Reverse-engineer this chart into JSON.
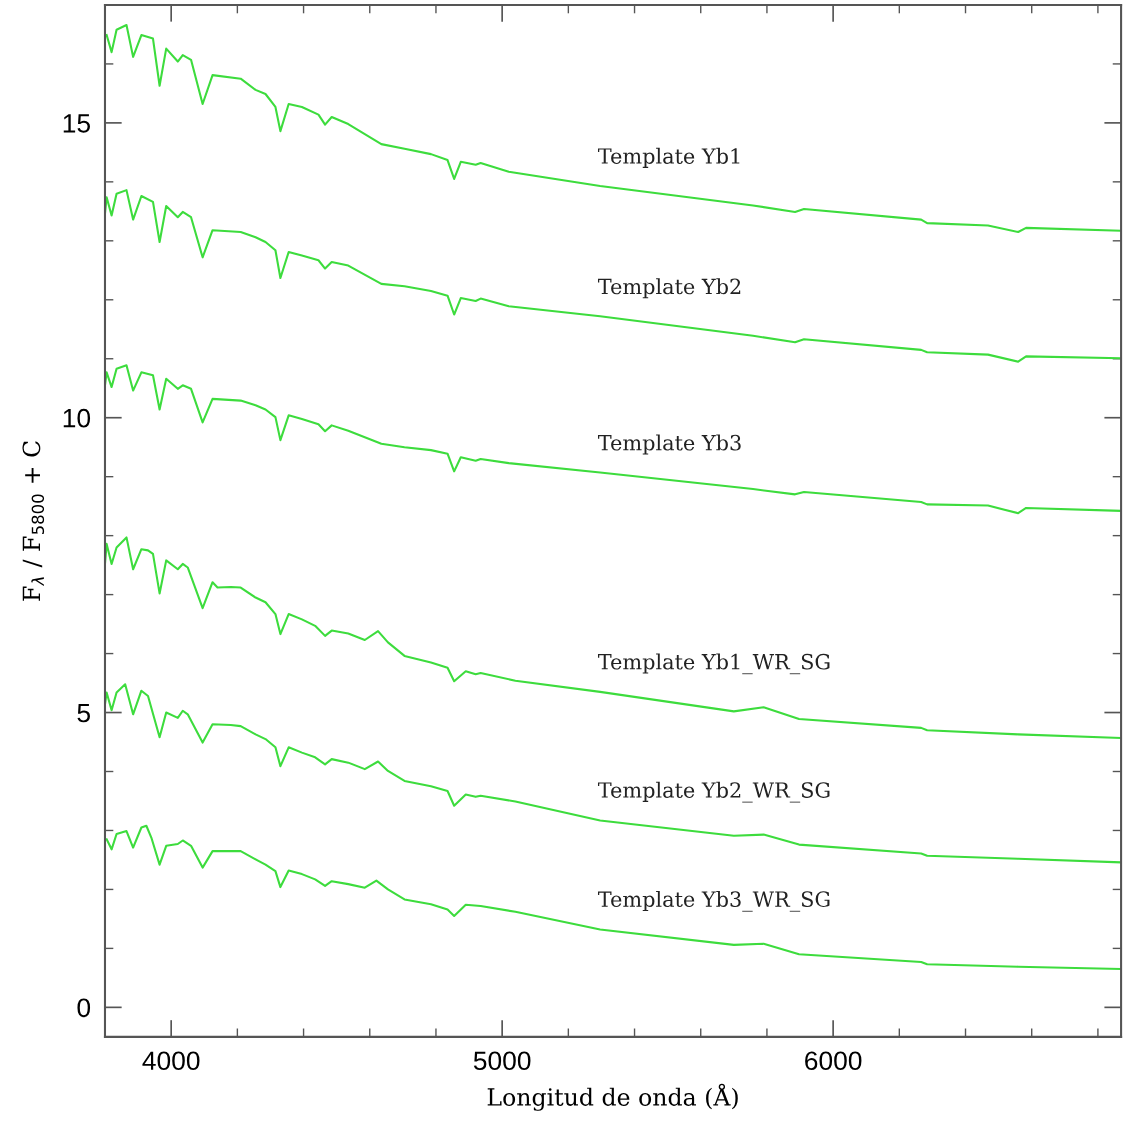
{
  "chart_data": {
    "type": "line",
    "xlabel": "Longitud de onda (Å)",
    "ylabel": "F$_{λ}$ / F$_{5800}$ + C",
    "xlim": [
      3800,
      6870
    ],
    "ylim": [
      -0.5,
      17
    ],
    "xticks": [
      {
        "value": 4000,
        "label": "4000"
      },
      {
        "value": 4200,
        "label": null
      },
      {
        "value": 4400,
        "label": null
      },
      {
        "value": 4600,
        "label": null
      },
      {
        "value": 4800,
        "label": null
      },
      {
        "value": 5000,
        "label": "5000"
      },
      {
        "value": 5200,
        "label": null
      },
      {
        "value": 5400,
        "label": null
      },
      {
        "value": 5600,
        "label": null
      },
      {
        "value": 5800,
        "label": null
      },
      {
        "value": 6000,
        "label": "6000"
      },
      {
        "value": 6200,
        "label": null
      },
      {
        "value": 6400,
        "label": null
      },
      {
        "value": 6600,
        "label": null
      },
      {
        "value": 6800,
        "label": null
      }
    ],
    "yticks": [
      {
        "value": 0,
        "label": "0"
      },
      {
        "value": 1,
        "label": null
      },
      {
        "value": 2,
        "label": null
      },
      {
        "value": 3,
        "label": null
      },
      {
        "value": 4,
        "label": null
      },
      {
        "value": 5,
        "label": "5"
      },
      {
        "value": 6,
        "label": null
      },
      {
        "value": 7,
        "label": null
      },
      {
        "value": 8,
        "label": null
      },
      {
        "value": 9,
        "label": null
      },
      {
        "value": 10,
        "label": "10"
      },
      {
        "value": 11,
        "label": null
      },
      {
        "value": 12,
        "label": null
      },
      {
        "value": 13,
        "label": null
      },
      {
        "value": 14,
        "label": null
      },
      {
        "value": 15,
        "label": "15"
      },
      {
        "value": 16,
        "label": null
      },
      {
        "value": 17,
        "label": null
      }
    ],
    "series": [
      {
        "name": "Template Yb1",
        "color": "#3ddc3d",
        "x": [
          3805,
          3820,
          3835,
          3865,
          3885,
          3910,
          3945,
          3965,
          3985,
          4020,
          4035,
          4060,
          4095,
          4125,
          4210,
          4255,
          4285,
          4315,
          4330,
          4355,
          4395,
          4445,
          4465,
          4485,
          4535,
          4635,
          4705,
          4785,
          4835,
          4855,
          4875,
          4920,
          4935,
          5020,
          5296,
          5758,
          5885,
          5912,
          6266,
          6284,
          6468,
          6559,
          6583,
          6867
        ],
        "values": [
          16.49,
          16.2,
          16.58,
          16.66,
          16.12,
          16.49,
          16.43,
          15.63,
          16.26,
          16.04,
          16.15,
          16.07,
          15.32,
          15.81,
          15.75,
          15.56,
          15.49,
          15.27,
          14.86,
          15.32,
          15.27,
          15.14,
          14.97,
          15.1,
          14.98,
          14.64,
          14.56,
          14.47,
          14.37,
          14.05,
          14.34,
          14.29,
          14.32,
          14.17,
          13.93,
          13.6,
          13.49,
          13.54,
          13.36,
          13.3,
          13.26,
          13.15,
          13.22,
          13.17
        ]
      },
      {
        "name": "Template Yb2",
        "color": "#3ddc3d",
        "x": [
          3800,
          3805,
          3820,
          3835,
          3865,
          3885,
          3910,
          3945,
          3965,
          3985,
          4020,
          4035,
          4060,
          4095,
          4125,
          4210,
          4255,
          4285,
          4315,
          4330,
          4355,
          4395,
          4445,
          4465,
          4485,
          4535,
          4635,
          4705,
          4785,
          4835,
          4855,
          4875,
          4920,
          4935,
          5020,
          5296,
          5758,
          5885,
          5912,
          6266,
          6284,
          6468,
          6559,
          6583,
          6867
        ],
        "values": [
          13.46,
          13.74,
          13.43,
          13.8,
          13.86,
          13.36,
          13.76,
          13.66,
          12.98,
          13.59,
          13.4,
          13.49,
          13.4,
          12.72,
          13.18,
          13.15,
          13.06,
          12.98,
          12.84,
          12.37,
          12.81,
          12.75,
          12.67,
          12.53,
          12.64,
          12.58,
          12.27,
          12.23,
          12.15,
          12.07,
          11.75,
          12.03,
          11.98,
          12.02,
          11.89,
          11.72,
          11.39,
          11.28,
          11.33,
          11.15,
          11.11,
          11.07,
          10.95,
          11.04,
          11.01
        ]
      },
      {
        "name": "Template Yb3",
        "color": "#3ddc3d",
        "x": [
          3800,
          3805,
          3820,
          3835,
          3865,
          3885,
          3910,
          3945,
          3965,
          3985,
          4020,
          4035,
          4060,
          4095,
          4125,
          4210,
          4255,
          4285,
          4315,
          4330,
          4355,
          4395,
          4445,
          4465,
          4485,
          4535,
          4635,
          4705,
          4785,
          4835,
          4855,
          4875,
          4920,
          4935,
          5020,
          5296,
          5758,
          5885,
          5912,
          6266,
          6284,
          6468,
          6559,
          6583,
          6867
        ],
        "values": [
          10.55,
          10.77,
          10.52,
          10.83,
          10.89,
          10.46,
          10.77,
          10.72,
          10.14,
          10.66,
          10.49,
          10.55,
          10.49,
          9.92,
          10.32,
          10.29,
          10.21,
          10.14,
          10.01,
          9.62,
          10.04,
          9.98,
          9.89,
          9.77,
          9.87,
          9.78,
          9.56,
          9.5,
          9.45,
          9.39,
          9.09,
          9.33,
          9.27,
          9.3,
          9.23,
          9.07,
          8.79,
          8.7,
          8.74,
          8.57,
          8.53,
          8.51,
          8.38,
          8.47,
          8.42
        ]
      },
      {
        "name": "Template Yb1_WR_SG",
        "color": "#3ddc3d",
        "x": [
          3800,
          3805,
          3820,
          3835,
          3865,
          3885,
          3910,
          3930,
          3945,
          3965,
          3985,
          4020,
          4035,
          4050,
          4095,
          4125,
          4140,
          4180,
          4210,
          4255,
          4285,
          4315,
          4330,
          4355,
          4395,
          4435,
          4465,
          4485,
          4535,
          4585,
          4625,
          4655,
          4705,
          4785,
          4835,
          4855,
          4890,
          4920,
          4935,
          5040,
          5296,
          5700,
          5790,
          5897,
          6266,
          6284,
          6559,
          6867
        ],
        "values": [
          7.52,
          7.86,
          7.52,
          7.8,
          7.97,
          7.43,
          7.77,
          7.75,
          7.69,
          7.02,
          7.58,
          7.43,
          7.52,
          7.46,
          6.77,
          7.21,
          7.12,
          7.13,
          7.12,
          6.95,
          6.87,
          6.67,
          6.33,
          6.67,
          6.58,
          6.47,
          6.3,
          6.39,
          6.34,
          6.23,
          6.38,
          6.19,
          5.96,
          5.85,
          5.76,
          5.53,
          5.7,
          5.65,
          5.67,
          5.54,
          5.35,
          5.02,
          5.09,
          4.89,
          4.74,
          4.7,
          4.63,
          4.57
        ]
      },
      {
        "name": "Template Yb2_WR_SG",
        "color": "#3ddc3d",
        "x": [
          3800,
          3805,
          3820,
          3835,
          3861,
          3885,
          3910,
          3930,
          3965,
          3985,
          4020,
          4035,
          4050,
          4095,
          4125,
          4180,
          4210,
          4255,
          4285,
          4315,
          4330,
          4355,
          4395,
          4435,
          4465,
          4485,
          4535,
          4585,
          4625,
          4655,
          4705,
          4785,
          4835,
          4855,
          4890,
          4920,
          4935,
          5040,
          5296,
          5700,
          5790,
          5897,
          6266,
          6284,
          6559,
          6867
        ],
        "values": [
          5.14,
          5.34,
          5.04,
          5.34,
          5.48,
          4.97,
          5.37,
          5.28,
          4.58,
          5.0,
          4.91,
          5.03,
          4.97,
          4.49,
          4.8,
          4.79,
          4.77,
          4.63,
          4.55,
          4.41,
          4.09,
          4.41,
          4.32,
          4.24,
          4.12,
          4.21,
          4.15,
          4.04,
          4.17,
          4.01,
          3.84,
          3.75,
          3.67,
          3.42,
          3.61,
          3.57,
          3.59,
          3.49,
          3.17,
          2.91,
          2.93,
          2.76,
          2.61,
          2.57,
          2.52,
          2.46
        ]
      },
      {
        "name": "Template Yb3_WR_SG",
        "color": "#3ddc3d",
        "x": [
          3805,
          3820,
          3835,
          3865,
          3885,
          3910,
          3925,
          3940,
          3965,
          3985,
          4020,
          4035,
          4060,
          4095,
          4125,
          4180,
          4210,
          4255,
          4285,
          4315,
          4330,
          4355,
          4395,
          4435,
          4465,
          4485,
          4535,
          4585,
          4620,
          4655,
          4705,
          4785,
          4835,
          4855,
          4890,
          4935,
          5040,
          5296,
          5700,
          5790,
          5897,
          6266,
          6284,
          6559,
          6867
        ],
        "values": [
          2.85,
          2.68,
          2.94,
          2.99,
          2.71,
          3.05,
          3.08,
          2.88,
          2.42,
          2.74,
          2.77,
          2.83,
          2.74,
          2.37,
          2.65,
          2.65,
          2.65,
          2.51,
          2.42,
          2.31,
          2.04,
          2.32,
          2.26,
          2.17,
          2.06,
          2.14,
          2.09,
          2.03,
          2.15,
          2.0,
          1.83,
          1.75,
          1.66,
          1.55,
          1.74,
          1.72,
          1.62,
          1.32,
          1.06,
          1.08,
          0.9,
          0.77,
          0.73,
          0.69,
          0.65
        ]
      }
    ]
  }
}
